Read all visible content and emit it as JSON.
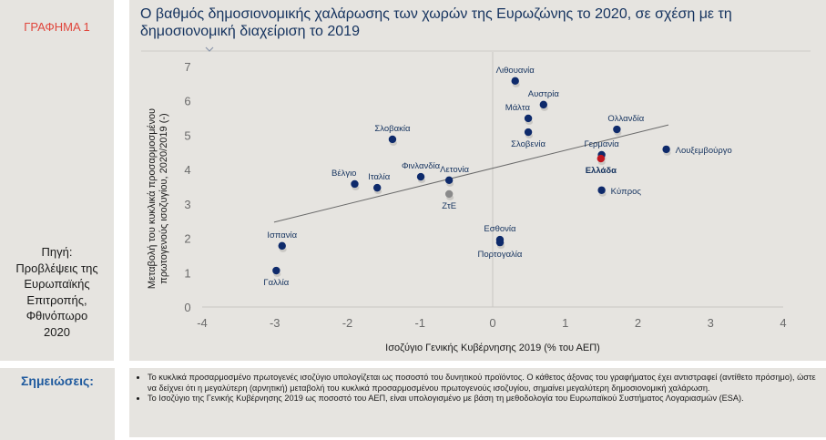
{
  "figure_label": "ΓΡΑΦΗΜΑ 1",
  "source_lines": [
    "Πηγή:",
    "Προβλέψεις της",
    "Ευρωπαϊκής",
    "Επιτροπής,",
    "Φθινόπωρο",
    "2020"
  ],
  "notes_label": "Σημειώσεις:",
  "notes": [
    "Το κυκλικά προσαρμοσμένο πρωτογενές ισοζύγιο υπολογίζεται ως ποσοστό του δυνητικού προϊόντος. Ο κάθετος άξονας του γραφήματος έχει αντιστραφεί (αντίθετο πρόσημο), ώστε να δείχνει ότι η μεγαλύτερη (αρνητική) μεταβολή του κυκλικά προσαρμοσμένου πρωτογενούς ισοζυγίου, σημαίνει μεγαλύτερη δημοσιονομική χαλάρωση.",
    "Το Ισοζύγιο της Γενικής Κυβέρνησης 2019 ως ποσοστό του ΑΕΠ, είναι υπολογισμένο με βάση τη μεθοδολογία του Ευρωπαϊκού Συστήματος Λογαριασμών (ESA)."
  ],
  "colors": {
    "point": "#0e2a6b",
    "highlight": "#c0161f",
    "aggregate": "#8a8a8a",
    "trend": "#6a6a6a"
  },
  "chart_data": {
    "type": "scatter",
    "title": "Ο βαθμός δημοσιονομικής χαλάρωσης των χωρών της Ευρωζώνης το 2020, σε σχέση με τη δημοσιονομική διαχείριση το 2019",
    "xlabel": "Ισοζύγιο Γενικής Κυβέρνησης 2019 (% του ΑΕΠ)",
    "ylabel_lines": [
      "Μεταβολή του κυκλικά προσαρμοσμένου",
      "πρωτογενούς ισοζυγίου, 2020/2019 (-)"
    ],
    "xlim": [
      -4,
      4
    ],
    "ylim": [
      0,
      7
    ],
    "xticks": [
      -4,
      -3,
      -2,
      -1,
      0,
      1,
      2,
      3,
      4
    ],
    "yticks": [
      0,
      1,
      2,
      3,
      4,
      5,
      6,
      7
    ],
    "grid": false,
    "points": [
      {
        "name": "Λιθουανία",
        "x": 0.31,
        "y": 6.58,
        "kind": "country",
        "label_pos": "above"
      },
      {
        "name": "Αυστρία",
        "x": 0.7,
        "y": 5.89,
        "kind": "country",
        "label_pos": "above"
      },
      {
        "name": "Μάλτα",
        "x": 0.49,
        "y": 5.49,
        "kind": "country",
        "label_pos": "above-left"
      },
      {
        "name": "Σλοβενία",
        "x": 0.49,
        "y": 5.09,
        "kind": "country",
        "label_pos": "below"
      },
      {
        "name": "Ολλανδία",
        "x": 1.71,
        "y": 5.17,
        "kind": "country",
        "label_pos": "above-right"
      },
      {
        "name": "Λουξεμβούργο",
        "x": 2.39,
        "y": 4.59,
        "kind": "country",
        "label_pos": "right"
      },
      {
        "name": "Γερμανία",
        "x": 1.5,
        "y": 4.43,
        "kind": "country",
        "label_pos": "above"
      },
      {
        "name": "Ελλάδα",
        "x": 1.49,
        "y": 4.32,
        "kind": "highlight",
        "label_pos": "below"
      },
      {
        "name": "Κύπρος",
        "x": 1.5,
        "y": 3.4,
        "kind": "country",
        "label_pos": "right"
      },
      {
        "name": "Σλοβακία",
        "x": -1.38,
        "y": 4.88,
        "kind": "country",
        "label_pos": "above"
      },
      {
        "name": "Βέλγιο",
        "x": -1.9,
        "y": 3.58,
        "kind": "country",
        "label_pos": "above-left"
      },
      {
        "name": "Ιταλία",
        "x": -1.59,
        "y": 3.47,
        "kind": "country",
        "label_pos": "above-right"
      },
      {
        "name": "Φινλανδία",
        "x": -0.99,
        "y": 3.79,
        "kind": "country",
        "label_pos": "above"
      },
      {
        "name": "Λετονία",
        "x": -0.6,
        "y": 3.69,
        "kind": "country",
        "label_pos": "above-right"
      },
      {
        "name": "ΖτΕ",
        "x": -0.6,
        "y": 3.29,
        "kind": "aggregate",
        "label_pos": "below"
      },
      {
        "name": "Εσθονία",
        "x": 0.1,
        "y": 1.96,
        "kind": "country",
        "label_pos": "above"
      },
      {
        "name": "Πορτογαλία",
        "x": 0.1,
        "y": 1.88,
        "kind": "country",
        "label_pos": "below"
      },
      {
        "name": "Ισπανία",
        "x": -2.9,
        "y": 1.78,
        "kind": "country",
        "label_pos": "above"
      },
      {
        "name": "Γαλλία",
        "x": -2.98,
        "y": 1.06,
        "kind": "country",
        "label_pos": "below"
      }
    ],
    "trendline": {
      "x": [
        -3.01,
        2.42
      ],
      "y": [
        2.47,
        5.3
      ]
    }
  }
}
